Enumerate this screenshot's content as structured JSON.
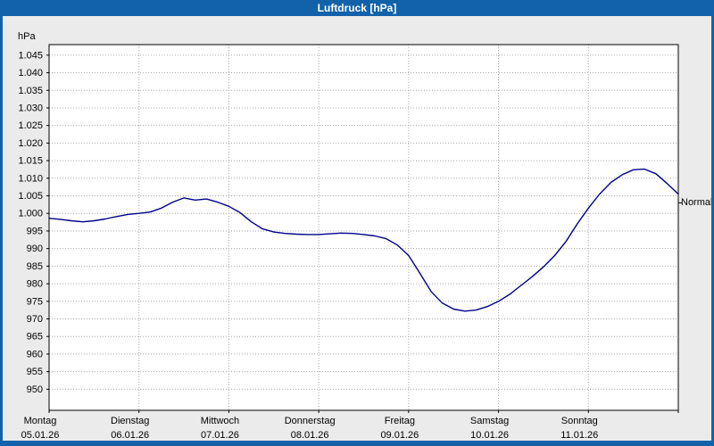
{
  "window": {
    "title": "Luftdruck [hPa]",
    "titlebar_color": "#1262aa",
    "frame_color": "#1262aa",
    "background_color": "#ebebeb"
  },
  "chart_data": {
    "type": "line",
    "title": "Luftdruck [hPa]",
    "y_unit_label": "hPa",
    "grid": "dotted",
    "plot_bg": "#ffffff",
    "grid_color": "#a8a8a8",
    "axis_color": "#000000",
    "ylim": [
      944,
      1048
    ],
    "x_range_days": [
      0,
      7
    ],
    "y_tick_values": [
      1045,
      1040,
      1035,
      1030,
      1025,
      1020,
      1015,
      1010,
      1005,
      1000,
      995,
      990,
      985,
      980,
      975,
      970,
      965,
      960,
      955,
      950
    ],
    "y_tick_labels": [
      "1.045",
      "1.040",
      "1.035",
      "1.030",
      "1.025",
      "1.020",
      "1.015",
      "1.010",
      "1.005",
      "1.000",
      "995",
      "990",
      "985",
      "980",
      "975",
      "970",
      "965",
      "960",
      "955",
      "950"
    ],
    "x_days": [
      {
        "weekday": "Montag",
        "date": "05.01.26"
      },
      {
        "weekday": "Dienstag",
        "date": "06.01.26"
      },
      {
        "weekday": "Mittwoch",
        "date": "07.01.26"
      },
      {
        "weekday": "Donnerstag",
        "date": "08.01.26"
      },
      {
        "weekday": "Freitag",
        "date": "09.01.26"
      },
      {
        "weekday": "Samstag",
        "date": "10.01.26"
      },
      {
        "weekday": "Sonntag",
        "date": "11.01.26"
      }
    ],
    "right_marker": {
      "label": "Normal",
      "value": 1003
    },
    "series": [
      {
        "name": "Luftdruck",
        "color": "#00008b",
        "x_days": [
          0,
          0.125,
          0.25,
          0.375,
          0.5,
          0.625,
          0.75,
          0.875,
          1,
          1.125,
          1.25,
          1.375,
          1.5,
          1.625,
          1.75,
          1.875,
          2,
          2.125,
          2.25,
          2.375,
          2.5,
          2.625,
          2.75,
          2.875,
          3,
          3.125,
          3.25,
          3.375,
          3.5,
          3.625,
          3.75,
          3.875,
          4,
          4.125,
          4.25,
          4.375,
          4.5,
          4.625,
          4.75,
          4.875,
          5,
          5.125,
          5.25,
          5.375,
          5.5,
          5.625,
          5.75,
          5.875,
          6,
          6.125,
          6.25,
          6.375,
          6.5,
          6.625,
          6.75,
          6.875,
          7
        ],
        "values_hpa": [
          998.6,
          998.3,
          997.9,
          997.6,
          997.9,
          998.4,
          999.1,
          999.7,
          1000.0,
          1000.4,
          1001.5,
          1003.2,
          1004.4,
          1003.8,
          1004.1,
          1003.2,
          1002.0,
          1000.2,
          997.6,
          995.6,
          994.7,
          994.3,
          994.1,
          994.0,
          994.0,
          994.2,
          994.4,
          994.3,
          994.0,
          993.6,
          992.8,
          991.0,
          988.0,
          983.0,
          977.8,
          974.5,
          972.8,
          972.2,
          972.5,
          973.5,
          975.0,
          977.0,
          979.5,
          982.0,
          984.8,
          988.0,
          992.0,
          997.0,
          1001.5,
          1005.5,
          1008.8,
          1011.0,
          1012.4,
          1012.6,
          1011.3,
          1008.5,
          1005.5
        ]
      }
    ]
  }
}
